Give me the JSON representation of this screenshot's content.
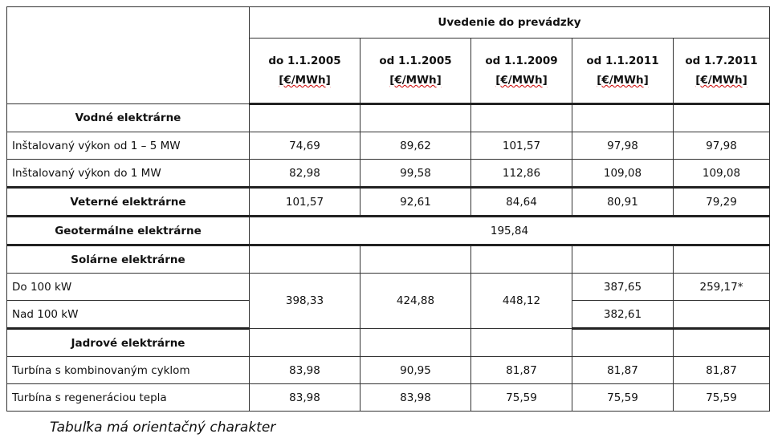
{
  "table": {
    "group_header": "Uvedenie do prevádzky",
    "columns": [
      {
        "date": "do 1.1.2005",
        "unit": "[€/MWh]"
      },
      {
        "date": "od 1.1.2005",
        "unit": "[€/MWh]"
      },
      {
        "date": "od 1.1.2009",
        "unit": "[€/MWh]"
      },
      {
        "date": "od 1.1.2011",
        "unit": "[€/MWh]"
      },
      {
        "date": "od 1.7.2011",
        "unit": "[€/MWh]"
      }
    ],
    "rows": [
      {
        "label": "Vodné elektrárne",
        "heading": true
      },
      {
        "label": "Inštalovaný výkon od 1 – 5 MW",
        "values": [
          "74,69",
          "89,62",
          "101,57",
          "97,98",
          "97,98"
        ]
      },
      {
        "label": "Inštalovaný výkon do 1 MW",
        "values": [
          "82,98",
          "99,58",
          "112,86",
          "109,08",
          "109,08"
        ]
      },
      {
        "label": "Veterné elektrárne",
        "heading": true,
        "values": [
          "101,57",
          "92,61",
          "84,64",
          "80,91",
          "79,29"
        ]
      },
      {
        "label": "Geotermálne elektrárne",
        "heading": true,
        "merged_value": "195,84"
      },
      {
        "label": "Solárne elektrárne",
        "heading": true
      },
      {
        "label": "Do 100 kW",
        "shared_values": [
          "398,33",
          "424,88",
          "448,12"
        ],
        "values": [
          "387,65",
          "259,17*"
        ]
      },
      {
        "label": "Nad 100 kW",
        "values": [
          "382,61"
        ]
      },
      {
        "label": "Jadrové elektrárne",
        "heading": true
      },
      {
        "label": "Turbína s kombinovaným cyklom",
        "values": [
          "83,98",
          "90,95",
          "81,87",
          "81,87",
          "81,87"
        ]
      },
      {
        "label": "Turbína s regeneráciou tepla",
        "values": [
          "83,98",
          "83,98",
          "75,59",
          "75,59",
          "75,59"
        ]
      }
    ]
  },
  "caption": "Tabuľka má orientačný charakter"
}
